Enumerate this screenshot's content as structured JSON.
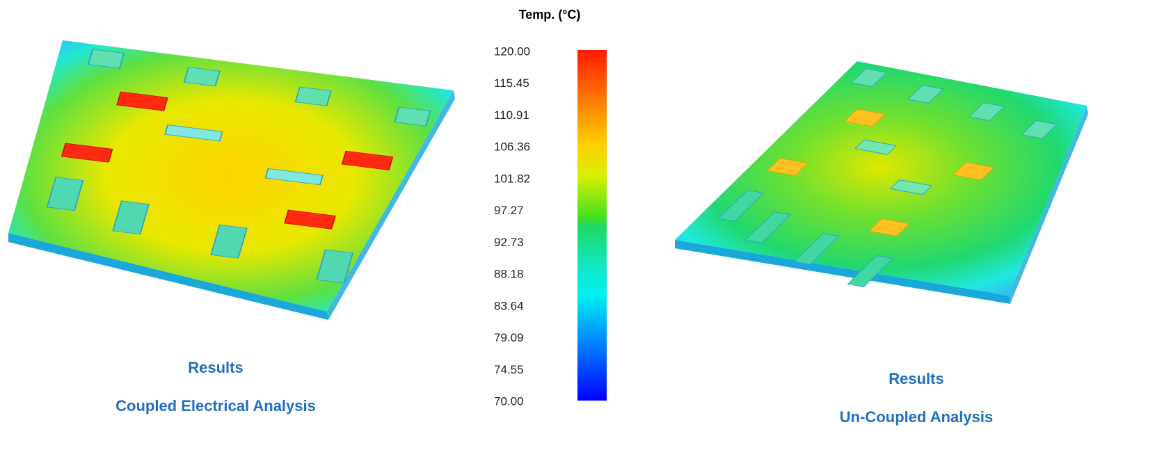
{
  "colorbar": {
    "title": "Temp. (°C)",
    "labels": [
      "120.00",
      "115.45",
      "110.91",
      "106.36",
      "101.82",
      "97.27",
      "92.73",
      "88.18",
      "83.64",
      "79.09",
      "74.55",
      "70.00"
    ]
  },
  "left_panel": {
    "caption": [
      "Results",
      "Coupled Electrical Analysis"
    ]
  },
  "right_panel": {
    "caption": [
      "Results",
      "Un-Coupled Analysis"
    ]
  }
}
